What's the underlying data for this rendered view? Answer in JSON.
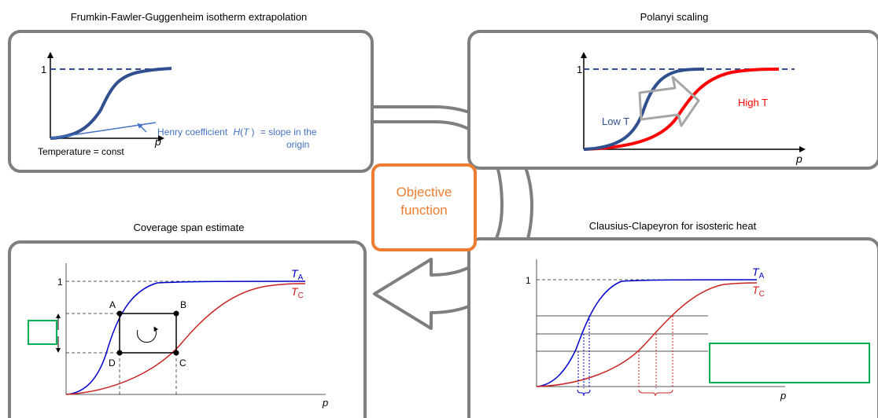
{
  "panels": {
    "top_left": {
      "title": "Frumkin-Fawler-Guggenheim isotherm extrapolation",
      "y_tick": "1",
      "x_label": "p",
      "condition": "Temperature = const",
      "annotation_a": "Henry coefficient",
      "annotation_h": "H",
      "annotation_open": "(",
      "annotation_t": "T",
      "annotation_close": ")",
      "annotation_b": "= slope in the",
      "annotation_c": "origin"
    },
    "top_right": {
      "title": "Polanyi scaling",
      "y_tick": "1",
      "x_label": "p",
      "low_t": "Low T",
      "high_t": "High T"
    },
    "center": {
      "line1": "Objective",
      "line2": "function"
    },
    "bottom_left": {
      "title": "Coverage span estimate",
      "y_tick": "1",
      "x_label": "p",
      "curve_a": "T",
      "curve_a_sub": "A",
      "curve_c": "T",
      "curve_c_sub": "C",
      "point_a": "A",
      "point_b": "B",
      "point_c": "C",
      "point_d": "D"
    },
    "bottom_right": {
      "title": "Clausius-Clapeyron for isosteric heat",
      "y_tick": "1",
      "x_label": "p",
      "curve_a": "T",
      "curve_a_sub": "A",
      "curve_c": "T",
      "curve_c_sub": "C"
    }
  },
  "colors": {
    "panel_border": "#7f7f7f",
    "navy_curve": "#2f4f8f",
    "red_curve": "#ff0000",
    "annotation_blue": "#4472c4",
    "objective_orange": "#ed7d31",
    "placeholder_green": "#00b050",
    "bl_blue": "#0000cc",
    "bl_red": "#cc2222"
  }
}
